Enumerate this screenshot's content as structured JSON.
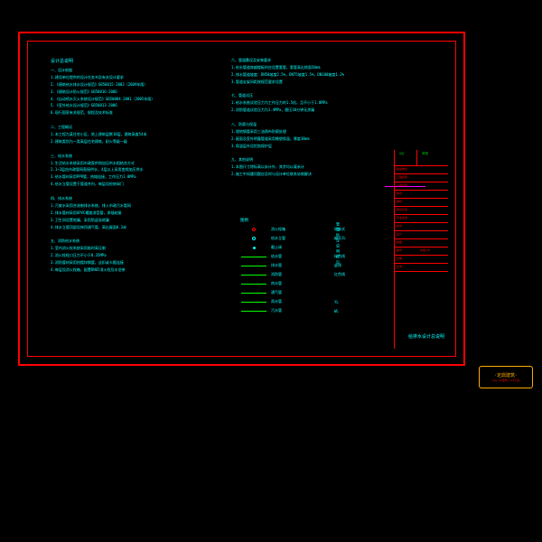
{
  "frame": {
    "outer_color": "#ff0000",
    "inner_color": "#ff0000",
    "background": "#000000"
  },
  "text": {
    "main_title": "设计总说明",
    "left_lines": [
      "一、设计依据",
      "1.建设单位提供的设计任务书及有关设计要求",
      "2.《建筑给水排水设计规范》GB50015-2003（2009年版）",
      "3.《建筑设计防火规范》GB50016-2006",
      "4.《自动喷水灭火系统设计规范》GB50084-2001（2005年版）",
      "5.《室外给水设计规范》GB50013-2006",
      "6.现行国家有关规范、规程及技术标准",
      "",
      "二、工程概况",
      "1.本工程为某住宅小区，地上建筑层数18层，建筑高度54米",
      "2.建筑类别为一类高层住宅建筑，耐火等级一级",
      "",
      "三、给水系统",
      "1.生活给水系统采用市政直供和加压供水相结合方式",
      "2.1~3层由市政管网直接供水，4层以上采用变频加压供水",
      "3.给水管材采用PPR管，热熔连接，工作压力1.0MPa",
      "4.给水立管设置于管道井内，每层设检修阀门",
      "",
      "四、排水系统",
      "1.污废水采用合流制排水系统，排入市政污水管网",
      "2.排水管材采用UPVC螺旋消音管，承插粘接",
      "3.卫生间设置地漏，采用防返溢地漏",
      "4.排水立管顶部设伸顶通气管，高出屋面0.3米",
      "",
      "五、消防给水系统",
      "1.室内消火栓系统采用临时高压制",
      "2.消火栓栓口压力不小于0.35MPa",
      "3.消防管材采用热镀锌钢管，丝扣或卡箍连接",
      "4.每层设消火栓箱，配置DN65消火栓及水龙带"
    ],
    "right_lines": [
      "六、管道敷设及安装要求",
      "1.给水管道穿越楼板时应设置套管，套管高出地面50mm",
      "2.排水管道坡度：DN50坡度2.5%，DN75坡度1.5%，DN100坡度1.2%",
      "3.管道支架间距按规范要求设置",
      "",
      "七、管道试压",
      "1.给水系统试验压力为工作压力的1.5倍，且不小于1.0MPa",
      "2.消防管道试验压力为1.4MPa，稳压30分钟无渗漏",
      "",
      "八、防腐与保温",
      "1.埋地钢管采用三油两布防腐处理",
      "2.屋面及室外明露管道采用橡塑保温，厚度30mm",
      "3.保温层外设铝箔保护层",
      "",
      "九、其他说明",
      "1.本图尺寸除标高以米计外，其余均以毫米计",
      "2.施工中如遇问题应及时与设计单位联系协商解决"
    ]
  },
  "legend": {
    "title": "图例",
    "items": [
      {
        "symbol": "circle-red",
        "label": "消火栓箱",
        "label2": "明装式"
      },
      {
        "symbol": "circle-cyan",
        "label": "给水立管",
        "label2": "编号JL"
      },
      {
        "symbol": "dot",
        "label": "截止阀",
        "label2": ""
      },
      {
        "symbol": "line-green",
        "label": "给水管",
        "label2": "绿色线"
      },
      {
        "symbol": "line-green",
        "label": "排水管",
        "label2": "虚线"
      },
      {
        "symbol": "line-green",
        "label": "消防管",
        "label2": "红色线"
      },
      {
        "symbol": "line-green",
        "label": "热水管",
        "label2": ""
      },
      {
        "symbol": "line-green",
        "label": "通气管",
        "label2": ""
      },
      {
        "symbol": "line-green",
        "label": "雨水管",
        "label2": "YL"
      },
      {
        "symbol": "line-green",
        "label": "污水管",
        "label2": "WL"
      }
    ],
    "vertical_label": "管道标注说明详见"
  },
  "titleblock": {
    "rows": [
      {
        "label": "建设单位",
        "value": ""
      },
      {
        "label": "工程名称",
        "value": ""
      },
      {
        "label": "子项名称",
        "value": ""
      },
      {
        "label": "审定",
        "value": ""
      },
      {
        "label": "审核",
        "value": ""
      },
      {
        "label": "项目负责",
        "value": ""
      },
      {
        "label": "专业负责",
        "value": ""
      },
      {
        "label": "校对",
        "value": ""
      },
      {
        "label": "设计",
        "value": ""
      },
      {
        "label": "制图",
        "value": ""
      },
      {
        "label": "图号",
        "value": "水施-01"
      },
      {
        "label": "日期",
        "value": ""
      },
      {
        "label": "比例",
        "value": ""
      }
    ],
    "approval": "A区",
    "reviewer": "审图"
  },
  "drawing_title": "给排水设计总说明",
  "watermark": {
    "title": "·定鼎建筑·",
    "subtitle": "www.dd建筑.com下载"
  },
  "colors": {
    "border": "#ff0000",
    "text_primary": "#00ffff",
    "line_green": "#00ff00",
    "leader": "#ff00ff",
    "watermark": "#ffaa00"
  }
}
